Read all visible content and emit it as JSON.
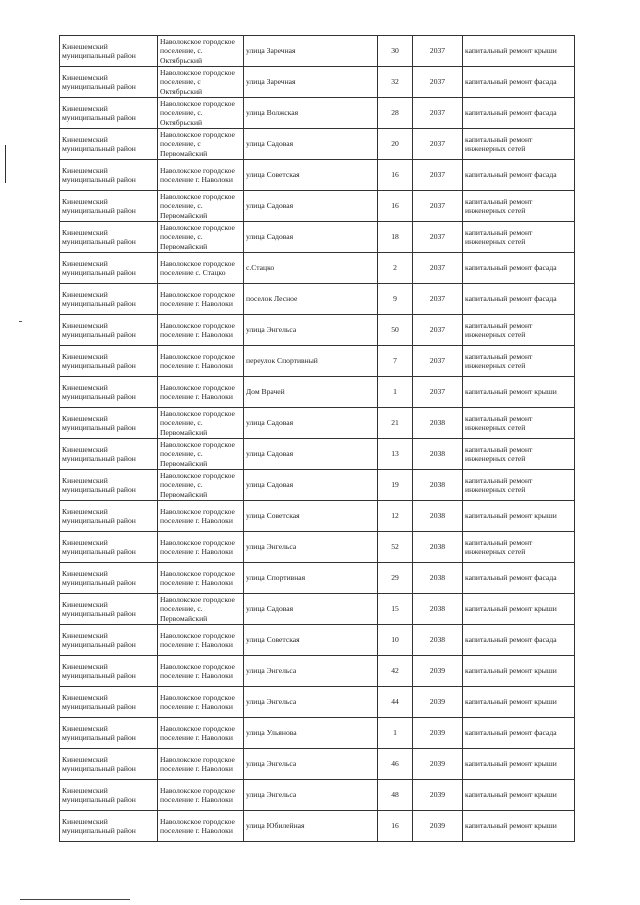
{
  "table": {
    "rows": [
      [
        "Кинешемский муниципальный район",
        "Наволокское городское поселение, с. Октябрьский",
        "улица Заречная",
        "30",
        "2037",
        "капитальный ремонт крыши"
      ],
      [
        "Кинешемский муниципальный район",
        "Наволокское городское поселение, с Октябрьский",
        "улица Заречная",
        "32",
        "2037",
        "капитальный ремонт фасада"
      ],
      [
        "Кинешемский муниципальный район",
        "Наволокское городское поселение, с. Октябрьский",
        "улица Волжская",
        "28",
        "2037",
        "капитальный ремонт фасада"
      ],
      [
        "Кинешемский муниципальный район",
        "Наволокское городское поселение, с Первомайский",
        "улица Садовая",
        "20",
        "2037",
        "капитальный ремонт инженерных сетей"
      ],
      [
        "Кинешемский муниципальный район",
        "Наволокское городское поселение г. Наволоки",
        "улица Советская",
        "16",
        "2037",
        "капитальный ремонт фасада"
      ],
      [
        "Кинешемский муниципальный район",
        "Наволокское городское поселение, с. Первомайский",
        "улица Садовая",
        "16",
        "2037",
        "капитальный ремонт инженерных сетей"
      ],
      [
        "Кинешемский муниципальный район",
        "Наволокское городское поселение, с. Первомайский",
        "улица Садовая",
        "18",
        "2037",
        "капитальный ремонт инженерных сетей"
      ],
      [
        "Кинешемский муниципальный район",
        "Наволокское городское поселение с. Стацко",
        "с.Стацко",
        "2",
        "2037",
        "капитальный ремонт фасада"
      ],
      [
        "Кинешемский муниципальный район",
        "Наволокское городское поселение г. Наволоки",
        "поселок  Лесное",
        "9",
        "2037",
        "капитальный ремонт фасада"
      ],
      [
        "Кинешемский муниципальный район",
        "Наволокское городское поселение г. Наволоки",
        "улица Энгельса",
        "50",
        "2037",
        "капитальный ремонт инженерных сетей"
      ],
      [
        "Кинешемский муниципальный район",
        "Наволокское городское поселение г. Наволоки",
        "переулок Спортивный",
        "7",
        "2037",
        "капитальный ремонт инженерных сетей"
      ],
      [
        "Кинешемский муниципальный район",
        "Наволокское городское поселение г. Наволоки",
        "Дом Врачей",
        "1",
        "2037",
        "капитальный ремонт крыши"
      ],
      [
        "Кинешемский муниципальный район",
        "Наволокское городское поселение, с. Первомайский",
        "улица Садовая",
        "21",
        "2038",
        "капитальный ремонт инженерных сетей"
      ],
      [
        "Кинешемский муниципальный район",
        "Наволокское городское поселение, с. Первомайский",
        "улица Садовая",
        "13",
        "2038",
        "капитальный ремонт инженерных сетей"
      ],
      [
        "Кинешемский муниципальный район",
        "Наволокское городское поселение, с. Первомайский",
        "улица Садовая",
        "19",
        "2038",
        "капитальный ремонт инженерных сетей"
      ],
      [
        "Кинешемский муниципальный район",
        "Наволокское городское поселение г. Наволоки",
        "улица Советская",
        "12",
        "2038",
        "капитальный ремонт крыши"
      ],
      [
        "Кинешемский муниципальный район",
        "Наволокское городское поселение г. Наволоки",
        "улица Энгельса",
        "52",
        "2038",
        "капитальный ремонт инженерных сетей"
      ],
      [
        "Кинешемский муниципальный район",
        "Наволокское городское поселение г. Наволоки",
        "улица Спортивная",
        "29",
        "2038",
        "капитальный ремонт фасада"
      ],
      [
        "Кинешемский муниципальный район",
        "Наволокское городское поселение, с. Первомайский",
        "улица Садовая",
        "15",
        "2038",
        "капитальный ремонт крыши"
      ],
      [
        "Кинешемский муниципальный район",
        "Наволокское городское поселение г. Наволоки",
        "улица Советская",
        "10",
        "2038",
        "капитальный ремонт фасада"
      ],
      [
        "Кинешемский муниципальный район",
        "Наволокское городское поселение г. Наволоки",
        "улица Энгельса",
        "42",
        "2039",
        "капитальный ремонт крыши"
      ],
      [
        "Кинешемский муниципальный район",
        "Наволокское городское поселение г. Наволоки",
        "улица Энгельса",
        "44",
        "2039",
        "капитальный ремонт крыши"
      ],
      [
        "Кинешемский муниципальный район",
        "Наволокское городское поселение г. Наволоки",
        "улица Ульянова",
        "1",
        "2039",
        "капитальный ремонт фасада"
      ],
      [
        "Кинешемский муниципальный район",
        "Наволокское городское поселение г. Наволоки",
        "улица Энгельса",
        "46",
        "2039",
        "капитальный ремонт крыши"
      ],
      [
        "Кинешемский муниципальный район",
        "Наволокское городское поселение г. Наволоки",
        "улица Энгельса",
        "48",
        "2039",
        "капитальный ремонт крыши"
      ],
      [
        "Кинешемский муниципальный район",
        "Наволокское городское поселение г. Наволоки",
        "улица Юбилейная",
        "16",
        "2039",
        "капитальный ремонт крыши"
      ]
    ]
  }
}
